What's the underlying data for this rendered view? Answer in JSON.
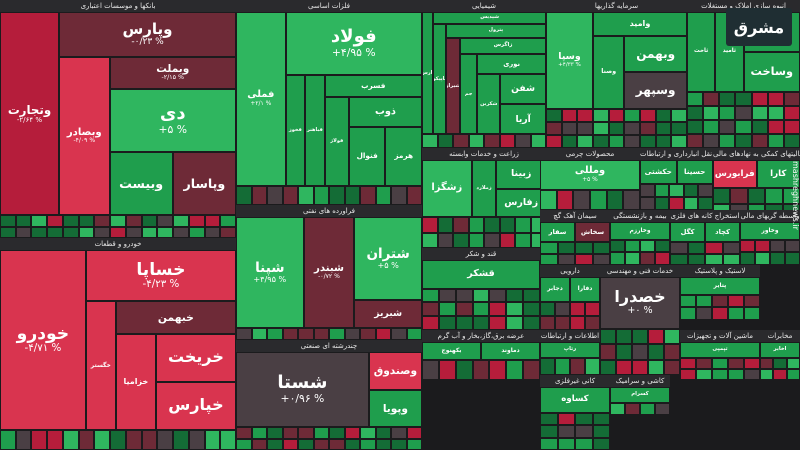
{
  "brand": {
    "logo_text": "مشرق",
    "website": "mashreghnews.ir"
  },
  "colors": {
    "deep_red": "#b51d3b",
    "red": "#d9344f",
    "maroon": "#6e2a37",
    "gray": "#4a3f44",
    "green": "#1f9e4d",
    "bright_green": "#2fb65f",
    "dark_green": "#146c36"
  },
  "chart_data": {
    "type": "heatmap",
    "subtype": "market-treemap",
    "sectors": [
      {
        "name": "بانکها و موسسات اعتباری",
        "tiles": [
          {
            "symbol": "وتجارت",
            "change": "-۲/۶۴ %",
            "color": "deep_red",
            "size": 3
          },
          {
            "symbol": "وپارس",
            "change": "-۰/۲۳ %",
            "color": "maroon",
            "size": 2
          },
          {
            "symbol": "وبصادر",
            "change": "-۴/۰۹ %",
            "color": "red",
            "size": 2
          },
          {
            "symbol": "وبملت",
            "change": "-۲/۱۵ %",
            "color": "maroon",
            "size": 1
          },
          {
            "symbol": "دی",
            "change": "+۵ %",
            "color": "bright_green",
            "size": 2
          },
          {
            "symbol": "وبیست",
            "change": "",
            "color": "green",
            "size": 1
          },
          {
            "symbol": "وپاسار",
            "change": "",
            "color": "maroon",
            "size": 1
          }
        ]
      },
      {
        "name": "خودرو و قطعات",
        "tiles": [
          {
            "symbol": "خودرو",
            "change": "-۴/۷۱ %",
            "color": "red",
            "size": 4
          },
          {
            "symbol": "خساپا",
            "change": "-۴/۲۳ %",
            "color": "red",
            "size": 2
          },
          {
            "symbol": "خگستر",
            "change": "",
            "color": "red",
            "size": 1
          },
          {
            "symbol": "خبهمن",
            "change": "",
            "color": "maroon",
            "size": 1
          },
          {
            "symbol": "خزامیا",
            "change": "",
            "color": "red",
            "size": 1
          },
          {
            "symbol": "خریخت",
            "change": "",
            "color": "red",
            "size": 1
          },
          {
            "symbol": "خپارس",
            "change": "",
            "color": "red",
            "size": 1
          }
        ]
      },
      {
        "name": "فلزات اساسی",
        "tiles": [
          {
            "symbol": "فملی",
            "change": "+۲/۱ %",
            "color": "bright_green",
            "size": 4
          },
          {
            "symbol": "فولاد",
            "change": "+۴/۹۵ %",
            "color": "bright_green",
            "size": 4
          },
          {
            "symbol": "فخوز",
            "change": "",
            "color": "green",
            "size": 1
          },
          {
            "symbol": "فباهنر",
            "change": "",
            "color": "green",
            "size": 1
          },
          {
            "symbol": "فسرب",
            "change": "",
            "color": "green",
            "size": 1
          },
          {
            "symbol": "فولاژ",
            "change": "",
            "color": "green",
            "size": 1
          },
          {
            "symbol": "ذوب",
            "change": "",
            "color": "green",
            "size": 1
          },
          {
            "symbol": "فنوال",
            "change": "",
            "color": "green",
            "size": 1
          },
          {
            "symbol": "هرمز",
            "change": "",
            "color": "green",
            "size": 1
          }
        ]
      },
      {
        "name": "فراورده های نفتی",
        "tiles": [
          {
            "symbol": "شپنا",
            "change": "+۴/۹۵ %",
            "color": "bright_green",
            "size": 4
          },
          {
            "symbol": "شبندر",
            "change": "-۰/۷۲ %",
            "color": "maroon",
            "size": 3
          },
          {
            "symbol": "شتران",
            "change": "+۵ %",
            "color": "bright_green",
            "size": 3
          },
          {
            "symbol": "شبریز",
            "change": "",
            "color": "maroon",
            "size": 1
          }
        ]
      },
      {
        "name": "چندرشته ای صنعتی",
        "tiles": [
          {
            "symbol": "شستا",
            "change": "+۰/۹۶ %",
            "color": "gray",
            "size": 5
          },
          {
            "symbol": "وصندوق",
            "change": "",
            "color": "red",
            "size": 1
          },
          {
            "symbol": "وپویا",
            "change": "",
            "color": "green",
            "size": 1
          }
        ]
      },
      {
        "name": "شیمیایی",
        "tiles": [
          {
            "symbol": "پارس",
            "change": "",
            "color": "green",
            "size": 1
          },
          {
            "symbol": "شپدیس",
            "change": "",
            "color": "green",
            "size": 1
          },
          {
            "symbol": "تاپیکو",
            "change": "",
            "color": "green",
            "size": 1
          },
          {
            "symbol": "پترول",
            "change": "",
            "color": "green",
            "size": 1
          },
          {
            "symbol": "شیراز",
            "change": "",
            "color": "maroon",
            "size": 1
          },
          {
            "symbol": "زاگرس",
            "change": "",
            "color": "green",
            "size": 1
          },
          {
            "symbol": "جم",
            "change": "",
            "color": "green",
            "size": 1
          },
          {
            "symbol": "نوری",
            "change": "",
            "color": "green",
            "size": 1
          },
          {
            "symbol": "شکربن",
            "change": "",
            "color": "green",
            "size": 1
          },
          {
            "symbol": "شفن",
            "change": "",
            "color": "green",
            "size": 1
          },
          {
            "symbol": "آریا",
            "change": "",
            "color": "green",
            "size": 1
          }
        ]
      },
      {
        "name": "سرمایه گذاریها",
        "tiles": [
          {
            "symbol": "وسپا",
            "change": "+۴/۳۳ %",
            "color": "bright_green",
            "size": 2
          },
          {
            "symbol": "وامید",
            "change": "",
            "color": "green",
            "size": 1
          },
          {
            "symbol": "وصنا",
            "change": "",
            "color": "green",
            "size": 1
          },
          {
            "symbol": "وبهمن",
            "change": "",
            "color": "green",
            "size": 1
          },
          {
            "symbol": "وسپهر",
            "change": "",
            "color": "gray",
            "size": 1
          }
        ]
      },
      {
        "name": "انبوه سازی املاک و مستغلات",
        "tiles": [
          {
            "symbol": "ثاخت",
            "change": "",
            "color": "green",
            "size": 1
          },
          {
            "symbol": "ثامید",
            "change": "",
            "color": "green",
            "size": 1
          },
          {
            "symbol": "ثشاهد",
            "change": "",
            "color": "green",
            "size": 1
          },
          {
            "symbol": "وساخت",
            "change": "",
            "color": "green",
            "size": 1
          }
        ]
      },
      {
        "name": "محصولات غذایی",
        "tiles": [
          {
            "symbol": "غبشهر",
            "change": "",
            "color": "green",
            "size": 1
          },
          {
            "symbol": "غمینو",
            "change": "",
            "color": "maroon",
            "size": 1
          },
          {
            "symbol": "غکورش",
            "change": "",
            "color": "green",
            "size": 1
          }
        ]
      },
      {
        "name": "حمل و نقل انبارداری و ارتباطات",
        "tiles": [
          {
            "symbol": "حکشتی",
            "change": "",
            "color": "green",
            "size": 1
          },
          {
            "symbol": "حسینا",
            "change": "",
            "color": "green",
            "size": 1
          }
        ]
      },
      {
        "name": "زراعت و خدمات وابسته",
        "tiles": [
          {
            "symbol": "زشگزا",
            "change": "",
            "color": "bright_green",
            "size": 2
          },
          {
            "symbol": "زملارد",
            "change": "",
            "color": "green",
            "size": 1
          },
          {
            "symbol": "زبینا",
            "change": "",
            "color": "green",
            "size": 1
          },
          {
            "symbol": "زفارس",
            "change": "",
            "color": "green",
            "size": 1
          }
        ]
      },
      {
        "name": "محصولات چرمی",
        "tiles": [
          {
            "symbol": "ومللی",
            "change": "+۵ %",
            "color": "bright_green",
            "size": 4
          }
        ]
      },
      {
        "name": "فعالیتهای کمکی به نهادهای مالی",
        "tiles": [
          {
            "symbol": "فرابورس",
            "change": "",
            "color": "red",
            "size": 1
          },
          {
            "symbol": "کارا",
            "change": "",
            "color": "green",
            "size": 1
          }
        ]
      },
      {
        "name": "سیمان آهک گچ",
        "tiles": [
          {
            "symbol": "سفار",
            "change": "",
            "color": "green",
            "size": 1
          },
          {
            "symbol": "سخاش",
            "change": "",
            "color": "maroon",
            "size": 1
          }
        ]
      },
      {
        "name": "بیمه و بازنشستگی",
        "tiles": [
          {
            "symbol": "وخارزم",
            "change": "",
            "color": "green",
            "size": 1
          }
        ]
      },
      {
        "name": "استخراج کانه های فلزی",
        "tiles": [
          {
            "symbol": "کگل",
            "change": "",
            "color": "green",
            "size": 1
          },
          {
            "symbol": "کچاد",
            "change": "",
            "color": "green",
            "size": 1
          }
        ]
      },
      {
        "name": "واسطه گریهای مالی",
        "tiles": [
          {
            "symbol": "وخاور",
            "change": "",
            "color": "green",
            "size": 1
          }
        ]
      },
      {
        "name": "کاشی و سرامیک",
        "tiles": [
          {
            "symbol": "کسرام",
            "change": "",
            "color": "green",
            "size": 1
          }
        ]
      },
      {
        "name": "خدمات فنی و مهندسی",
        "tiles": [
          {
            "symbol": "خصدرا",
            "change": "+۰ %",
            "color": "gray",
            "size": 3
          }
        ]
      },
      {
        "name": "لاستیک و پلاستیک",
        "tiles": [
          {
            "symbol": "پتایر",
            "change": "",
            "color": "green",
            "size": 1
          }
        ]
      },
      {
        "name": "دارویی",
        "tiles": [
          {
            "symbol": "دجابر",
            "change": "",
            "color": "green",
            "size": 1
          },
          {
            "symbol": "دفارا",
            "change": "",
            "color": "green",
            "size": 1
          }
        ]
      },
      {
        "name": "عرضه برق،گاز،بخار و آب گرم",
        "tiles": [
          {
            "symbol": "بکهنوج",
            "change": "",
            "color": "green",
            "size": 1
          },
          {
            "symbol": "دماوند",
            "change": "",
            "color": "green",
            "size": 1
          }
        ]
      },
      {
        "name": "ماشین آلات و تجهیزات",
        "tiles": [
          {
            "symbol": "تپمپی",
            "change": "",
            "color": "green",
            "size": 1
          }
        ]
      },
      {
        "name": "مخابرات",
        "tiles": [
          {
            "symbol": "اخابر",
            "change": "",
            "color": "green",
            "size": 1
          }
        ]
      },
      {
        "name": "اطلاعات و ارتباطات",
        "tiles": [
          {
            "symbol": "رتاپ",
            "change": "",
            "color": "green",
            "size": 1
          }
        ]
      },
      {
        "name": "قند و شکر",
        "tiles": [
          {
            "symbol": "قشکر",
            "change": "",
            "color": "green",
            "size": 1
          }
        ]
      },
      {
        "name": "کانی غیرفلزی",
        "tiles": [
          {
            "symbol": "کساوه",
            "change": "",
            "color": "green",
            "size": 1
          }
        ]
      }
    ]
  }
}
